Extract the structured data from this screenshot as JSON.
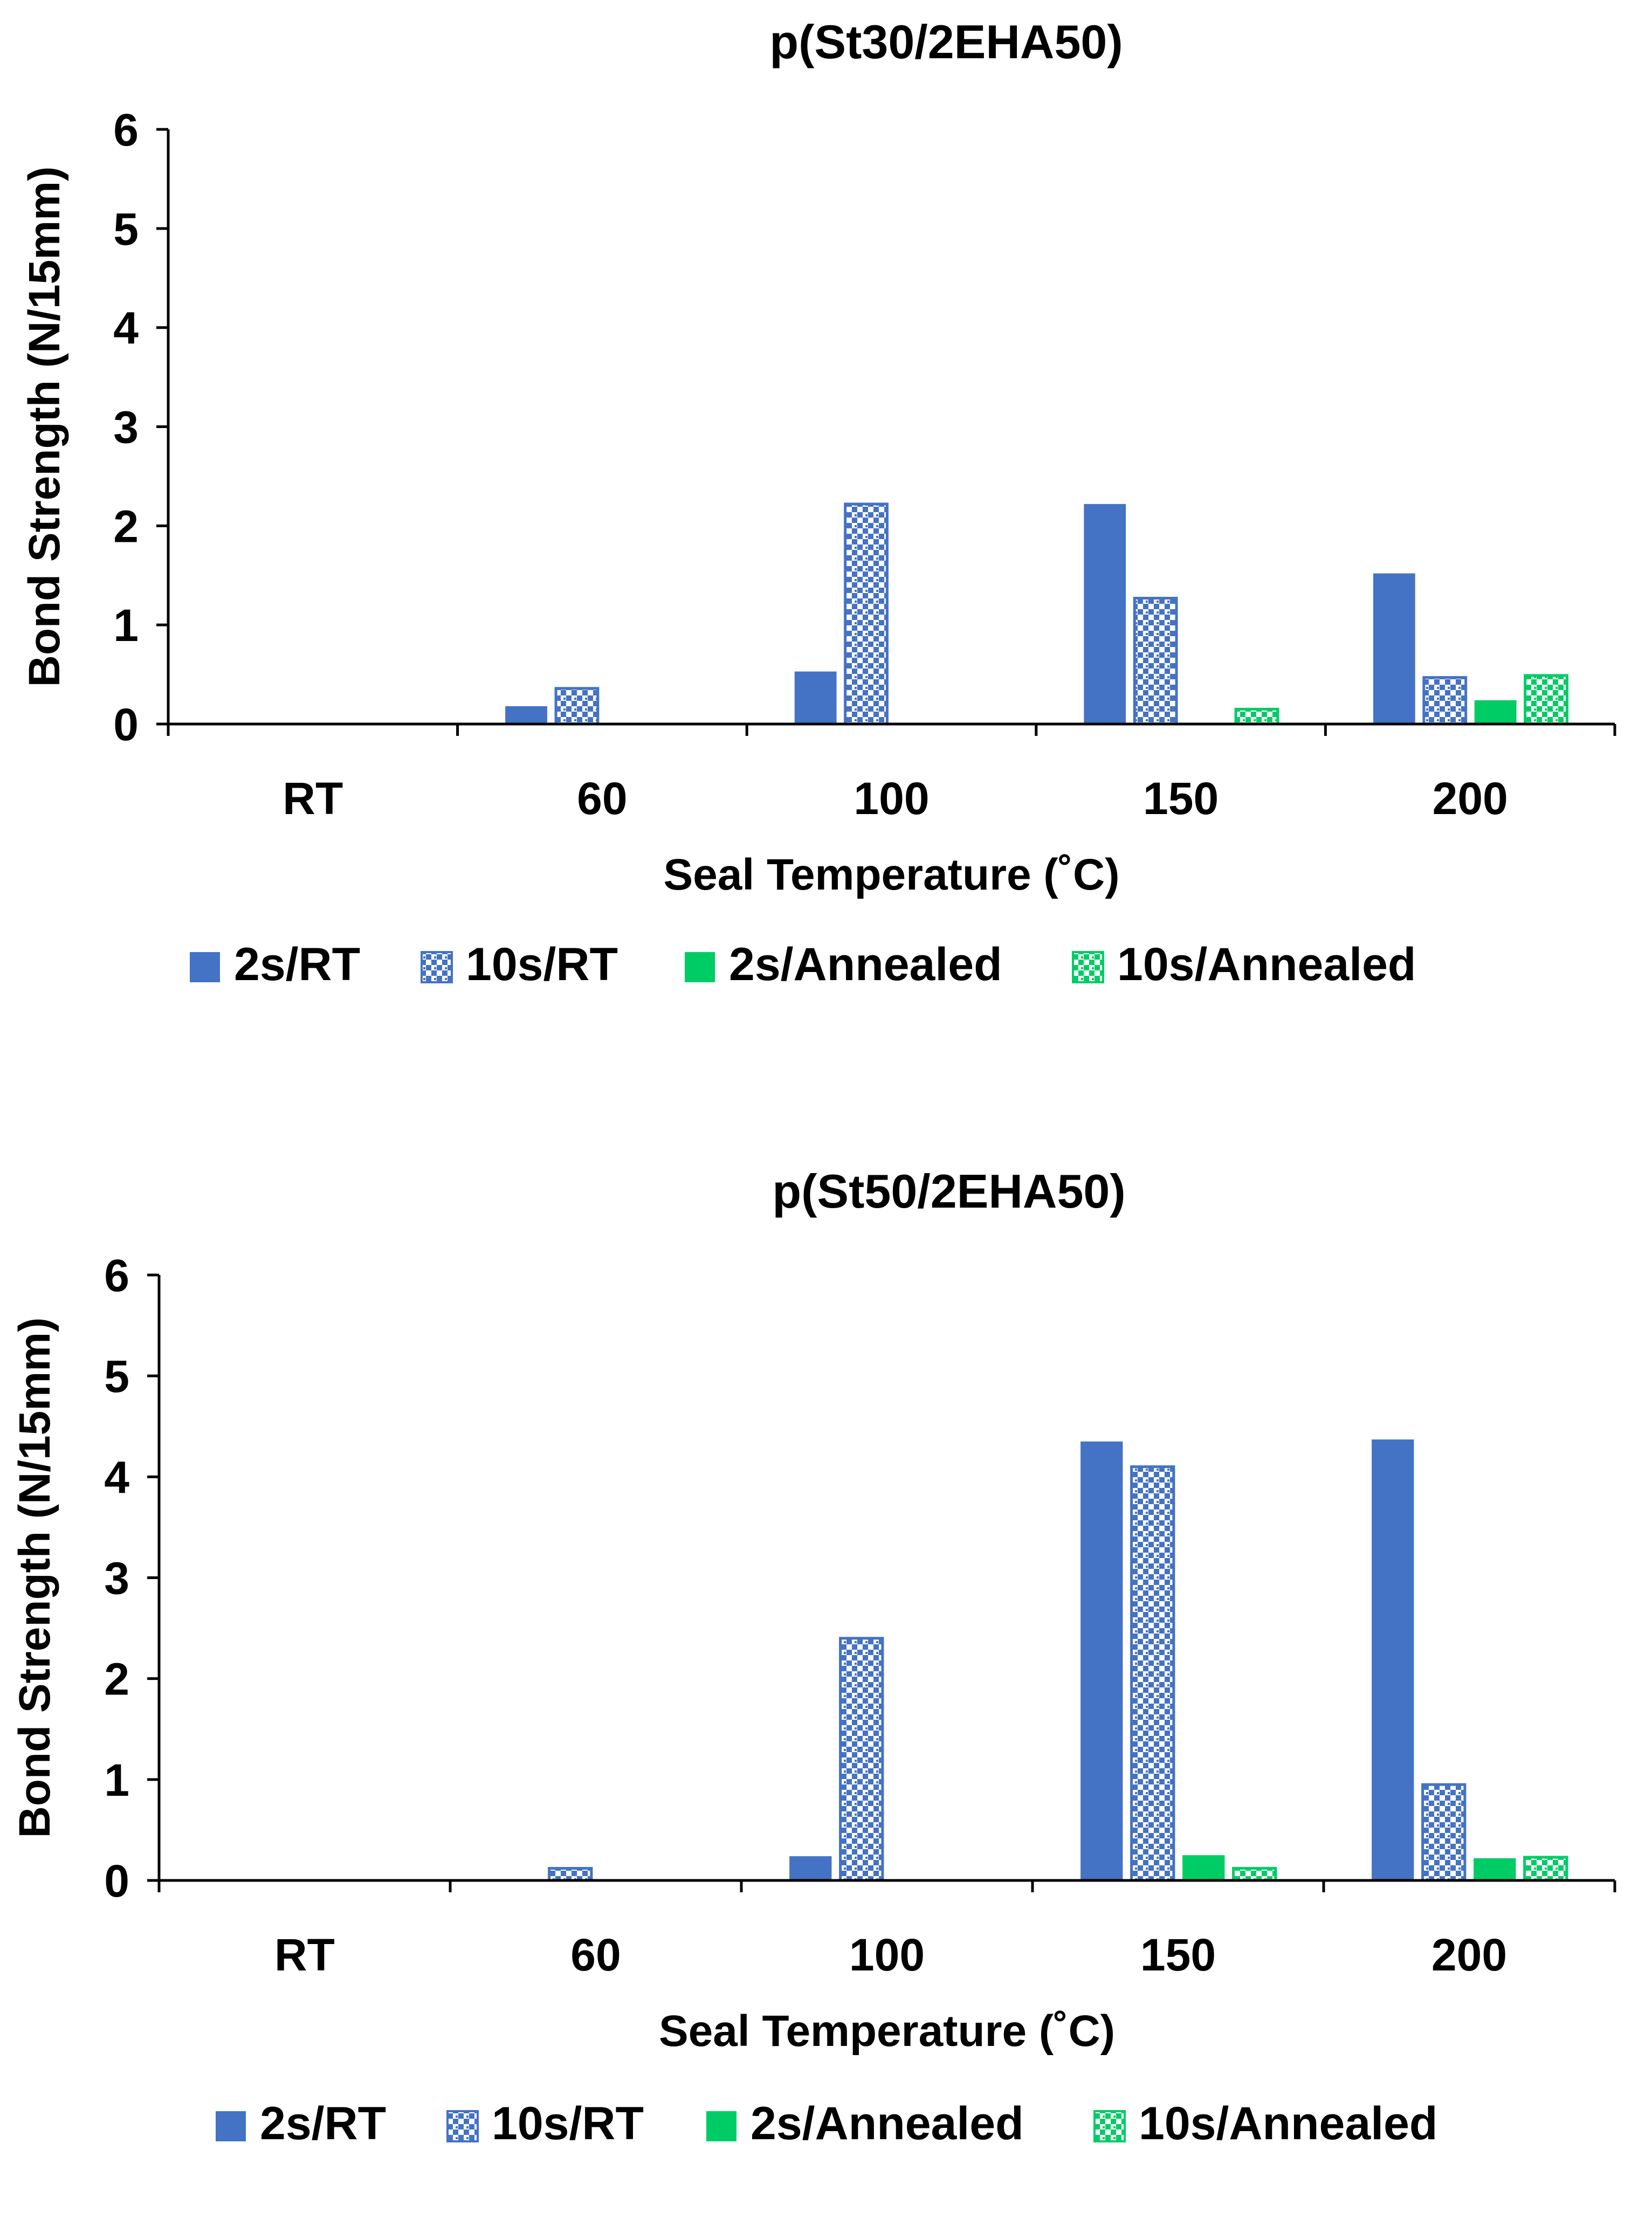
{
  "colors": {
    "blue": "#4472C4",
    "green": "#00CC66",
    "axis": "#000000",
    "background": "#FFFFFF"
  },
  "chart_data": [
    {
      "type": "bar",
      "title": "p(St30/2EHA50)",
      "xlabel": "Seal Temperature (˚C)",
      "ylabel": "Bond Strength  (N/15mm)",
      "categories": [
        "RT",
        "60",
        "100",
        "150",
        "200"
      ],
      "ylim": [
        0,
        6
      ],
      "yticks": [
        0,
        1,
        2,
        3,
        4,
        5,
        6
      ],
      "grid": false,
      "legend_position": "bottom",
      "series": [
        {
          "name": "2s/RT",
          "color": "#4472C4",
          "pattern": "solid",
          "values": [
            0,
            0.18,
            0.53,
            2.22,
            1.52
          ]
        },
        {
          "name": "10s/RT",
          "color": "#4472C4",
          "pattern": "checker",
          "values": [
            0,
            0.36,
            2.22,
            1.27,
            0.47
          ]
        },
        {
          "name": "2s/Annealed",
          "color": "#00CC66",
          "pattern": "solid",
          "values": [
            0,
            0,
            0,
            0,
            0.24
          ]
        },
        {
          "name": "10s/Annealed",
          "color": "#00CC66",
          "pattern": "checker",
          "values": [
            0,
            0,
            0,
            0.15,
            0.49
          ]
        }
      ]
    },
    {
      "type": "bar",
      "title": "p(St50/2EHA50)",
      "xlabel": "Seal Temperature (˚C)",
      "ylabel": "Bond Strength (N/15mm)",
      "categories": [
        "RT",
        "60",
        "100",
        "150",
        "200"
      ],
      "ylim": [
        0,
        6
      ],
      "yticks": [
        0,
        1,
        2,
        3,
        4,
        5,
        6
      ],
      "grid": false,
      "legend_position": "bottom",
      "series": [
        {
          "name": "2s/RT",
          "color": "#4472C4",
          "pattern": "solid",
          "values": [
            0,
            0,
            0.24,
            4.35,
            4.37
          ]
        },
        {
          "name": "10s/RT",
          "color": "#4472C4",
          "pattern": "checker",
          "values": [
            0,
            0.12,
            2.4,
            4.1,
            0.95
          ]
        },
        {
          "name": "2s/Annealed",
          "color": "#00CC66",
          "pattern": "solid",
          "values": [
            0,
            0,
            0,
            0.25,
            0.22
          ]
        },
        {
          "name": "10s/Annealed",
          "color": "#00CC66",
          "pattern": "checker",
          "values": [
            0,
            0,
            0,
            0.12,
            0.23
          ]
        }
      ]
    }
  ]
}
